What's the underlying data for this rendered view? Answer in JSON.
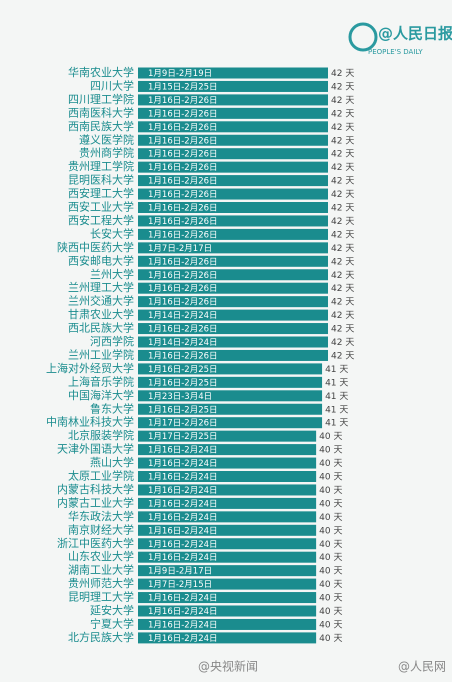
{
  "chart_data": {
    "type": "bar",
    "orientation": "horizontal",
    "color": "#1a8c8e",
    "xlim": [
      10,
      42
    ],
    "annotations": [
      "@人民日报",
      "PEOPLE'S DAILY",
      "@央视新闻",
      "@人民网"
    ],
    "categories": [
      "华南农业大学",
      "四川大学",
      "四川理工学院",
      "西南医科大学",
      "西南民族大学",
      "遵义医学院",
      "贵州商学院",
      "贵州理工学院",
      "昆明医科大学",
      "西安理工大学",
      "西安工业大学",
      "西安工程大学",
      "长安大学",
      "陕西中医药大学",
      "西安邮电大学",
      "兰州大学",
      "兰州理工大学",
      "兰州交通大学",
      "甘肃农业大学",
      "西北民族大学",
      "河西学院",
      "兰州工业学院",
      "上海对外经贸大学",
      "上海音乐学院",
      "中国海洋大学",
      "鲁东大学",
      "中南林业科技大学",
      "北京服装学院",
      "天津外国语大学",
      "燕山大学",
      "太原工业学院",
      "内蒙古科技大学",
      "内蒙古工业大学",
      "华东政法大学",
      "南京财经大学",
      "浙江中医药大学",
      "山东农业大学",
      "湖南工业大学",
      "贵州师范大学",
      "昆明理工大学",
      "延安大学",
      "宁夏大学",
      "北方民族大学"
    ],
    "date_labels": [
      "1月9日-2月19日",
      "1月15日-2月25日",
      "1月16日-2月26日",
      "1月16日-2月26日",
      "1月16日-2月26日",
      "1月16日-2月26日",
      "1月16日-2月26日",
      "1月16日-2月26日",
      "1月16日-2月26日",
      "1月16日-2月26日",
      "1月16日-2月26日",
      "1月16日-2月26日",
      "1月16日-2月26日",
      "1月7日-2月17日",
      "1月16日-2月26日",
      "1月16日-2月26日",
      "1月16日-2月26日",
      "1月16日-2月26日",
      "1月14日-2月24日",
      "1月16日-2月26日",
      "1月14日-2月24日",
      "1月16日-2月26日",
      "1月16日-2月25日",
      "1月16日-2月25日",
      "1月23日-3月4日",
      "1月16日-2月25日",
      "1月17日-2月26日",
      "1月17日-2月25日",
      "1月16日-2月24日",
      "1月16日-2月24日",
      "1月16日-2月24日",
      "1月16日-2月24日",
      "1月16日-2月24日",
      "1月16日-2月24日",
      "1月16日-2月24日",
      "1月16日-2月24日",
      "1月16日-2月24日",
      "1月9日-2月17日",
      "1月7日-2月15日",
      "1月16日-2月24日",
      "1月16日-2月24日",
      "1月16日-2月24日",
      "1月16日-2月24日"
    ],
    "values": [
      42,
      42,
      42,
      42,
      42,
      42,
      42,
      42,
      42,
      42,
      42,
      42,
      42,
      42,
      42,
      42,
      42,
      42,
      42,
      42,
      42,
      42,
      41,
      41,
      41,
      41,
      41,
      40,
      40,
      40,
      40,
      40,
      40,
      40,
      40,
      40,
      40,
      40,
      40,
      40,
      40,
      40,
      40
    ],
    "value_labels": [
      "42 天",
      "42 天",
      "42 天",
      "42 天",
      "42 天",
      "42 天",
      "42 天",
      "42 天",
      "42 天",
      "42 天",
      "42 天",
      "42 天",
      "42 天",
      "42 天",
      "42 天",
      "42 天",
      "42 天",
      "42 天",
      "42 天",
      "42 天",
      "42 天",
      "42 天",
      "41 天",
      "41 天",
      "41 天",
      "41 天",
      "41 天",
      "40 天",
      "40 天",
      "40 天",
      "40 天",
      "40 天",
      "40 天",
      "40 天",
      "40 天",
      "40 天",
      "40 天",
      "40 天",
      "40 天",
      "40 天",
      "40 天",
      "40 天",
      "40 天"
    ]
  }
}
